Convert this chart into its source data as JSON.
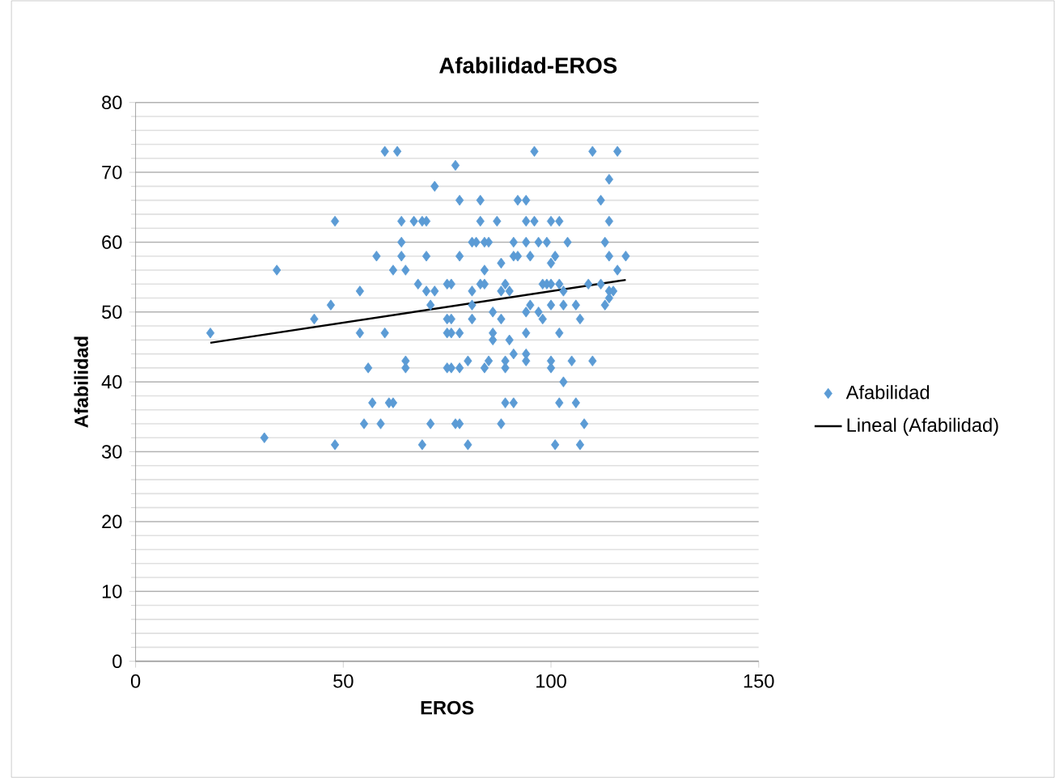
{
  "chart_data": {
    "type": "scatter",
    "title": "Afabilidad-EROS",
    "xlabel": "EROS",
    "ylabel": "Afabilidad",
    "xlim": [
      0,
      150
    ],
    "xticks": [
      0,
      50,
      100,
      150
    ],
    "ylim": [
      0,
      80
    ],
    "yticks": [
      0,
      10,
      20,
      30,
      40,
      50,
      60,
      70,
      80
    ],
    "grid": "y",
    "legend": "right",
    "series": [
      {
        "name": "Afabilidad",
        "marker": "diamond",
        "color": "#5b9bd5",
        "x": [
          60,
          63,
          72,
          48,
          64,
          67,
          69,
          70,
          64,
          58,
          64,
          70,
          34,
          62,
          65,
          68,
          70,
          72,
          75,
          54,
          71,
          47,
          43,
          18,
          54,
          60,
          75,
          75,
          65,
          65,
          56,
          75,
          57,
          61,
          62,
          55,
          59,
          71,
          31,
          48,
          69,
          77,
          96,
          110,
          116,
          114,
          78,
          83,
          92,
          94,
          112,
          83,
          87,
          94,
          96,
          100,
          102,
          114,
          81,
          82,
          84,
          85,
          91,
          94,
          97,
          99,
          104,
          113,
          78,
          91,
          92,
          95,
          101,
          114,
          118,
          84,
          88,
          100,
          116,
          76,
          83,
          84,
          89,
          90,
          98,
          99,
          100,
          102,
          103,
          109,
          112,
          115,
          114,
          114,
          81,
          88,
          81,
          95,
          100,
          103,
          106,
          113,
          94,
          97,
          86,
          98,
          107,
          76,
          81,
          88,
          76,
          78,
          86,
          94,
          102,
          86,
          90,
          91,
          94,
          80,
          85,
          89,
          94,
          100,
          105,
          110,
          76,
          78,
          84,
          89,
          100,
          103,
          89,
          91,
          102,
          106,
          77,
          78,
          88,
          108,
          80,
          101,
          107
        ],
        "values": [
          73,
          73,
          68,
          63,
          63,
          63,
          63,
          63,
          60,
          58,
          58,
          58,
          56,
          56,
          56,
          54,
          53,
          53,
          54,
          53,
          51,
          51,
          49,
          47,
          47,
          47,
          49,
          47,
          43,
          42,
          42,
          42,
          37,
          37,
          37,
          34,
          34,
          34,
          32,
          31,
          31,
          71,
          73,
          73,
          73,
          69,
          66,
          66,
          66,
          66,
          66,
          63,
          63,
          63,
          63,
          63,
          63,
          63,
          60,
          60,
          60,
          60,
          60,
          60,
          60,
          60,
          60,
          60,
          58,
          58,
          58,
          58,
          58,
          58,
          58,
          56,
          57,
          57,
          56,
          54,
          54,
          54,
          54,
          53,
          54,
          54,
          54,
          54,
          53,
          54,
          54,
          53,
          53,
          52,
          53,
          53,
          51,
          51,
          51,
          51,
          51,
          51,
          50,
          50,
          50,
          49,
          49,
          49,
          49,
          49,
          47,
          47,
          47,
          47,
          47,
          46,
          46,
          44,
          44,
          43,
          43,
          43,
          43,
          43,
          43,
          43,
          42,
          42,
          42,
          42,
          42,
          40,
          37,
          37,
          37,
          37,
          34,
          34,
          34,
          34,
          31,
          31,
          31
        ]
      },
      {
        "name": "Lineal (Afabilidad)",
        "type": "line",
        "marker": "none",
        "color": "#000000",
        "x": [
          18,
          118
        ],
        "values": [
          45.6,
          54.6
        ]
      }
    ]
  }
}
